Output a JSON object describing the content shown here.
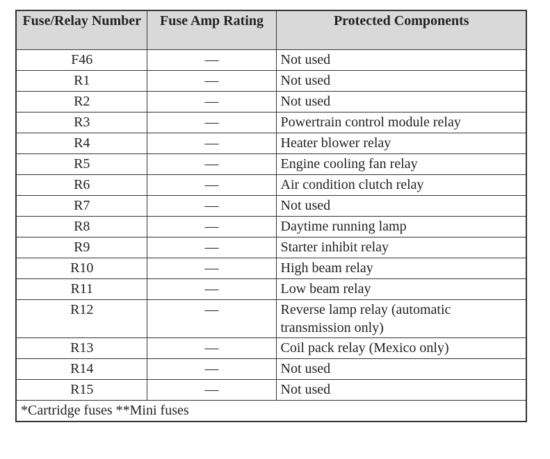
{
  "table": {
    "header": [
      "Fuse/Relay Number",
      "Fuse Amp Rating",
      "Protected Components"
    ],
    "rows": [
      [
        "F46",
        "—",
        "Not used"
      ],
      [
        "R1",
        "—",
        "Not used"
      ],
      [
        "R2",
        "—",
        "Not used"
      ],
      [
        "R3",
        "—",
        "Powertrain control module relay"
      ],
      [
        "R4",
        "—",
        "Heater blower relay"
      ],
      [
        "R5",
        "—",
        "Engine cooling fan relay"
      ],
      [
        "R6",
        "—",
        "Air condition clutch relay"
      ],
      [
        "R7",
        "—",
        "Not used"
      ],
      [
        "R8",
        "—",
        "Daytime running lamp"
      ],
      [
        "R9",
        "—",
        "Starter inhibit relay"
      ],
      [
        "R10",
        "—",
        "High beam relay"
      ],
      [
        "R11",
        "—",
        "Low beam relay"
      ],
      [
        "R12",
        "—",
        "Reverse lamp relay (automatic transmission only)"
      ],
      [
        "R13",
        "—",
        "Coil pack relay (Mexico only)"
      ],
      [
        "R14",
        "—",
        "Not used"
      ],
      [
        "R15",
        "—",
        "Not used"
      ]
    ],
    "footnote": "*Cartridge fuses **Mini fuses"
  }
}
